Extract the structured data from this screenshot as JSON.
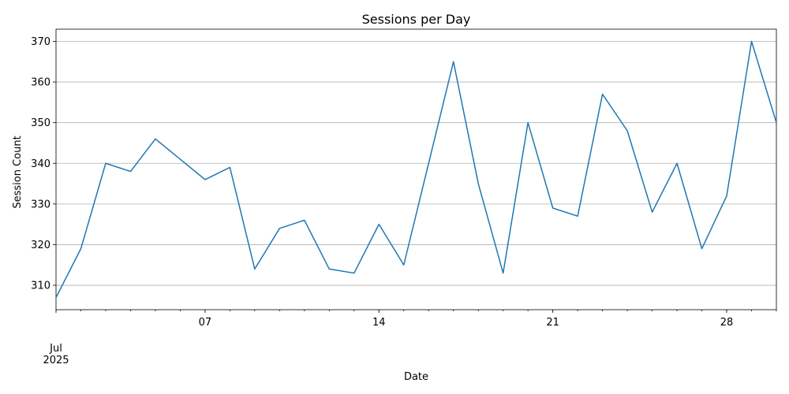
{
  "chart_data": {
    "type": "line",
    "title": "Sessions per Day",
    "xlabel": "Date",
    "ylabel": "Session Count",
    "x": [
      "2025-07-01",
      "2025-07-02",
      "2025-07-03",
      "2025-07-04",
      "2025-07-05",
      "2025-07-06",
      "2025-07-07",
      "2025-07-08",
      "2025-07-09",
      "2025-07-10",
      "2025-07-11",
      "2025-07-12",
      "2025-07-13",
      "2025-07-14",
      "2025-07-15",
      "2025-07-16",
      "2025-07-17",
      "2025-07-18",
      "2025-07-19",
      "2025-07-20",
      "2025-07-21",
      "2025-07-22",
      "2025-07-23",
      "2025-07-24",
      "2025-07-25",
      "2025-07-26",
      "2025-07-27",
      "2025-07-28",
      "2025-07-29",
      "2025-07-30"
    ],
    "series": [
      {
        "values": [
          307,
          319,
          340,
          338,
          346,
          341,
          336,
          339,
          314,
          324,
          326,
          314,
          313,
          325,
          315,
          340,
          365,
          335,
          313,
          350,
          329,
          327,
          357,
          348,
          328,
          340,
          319,
          332,
          370,
          350
        ]
      }
    ],
    "ylim": [
      304,
      373
    ],
    "xlim": [
      "2025-07-01",
      "2025-07-30"
    ],
    "yticks": [
      310,
      320,
      330,
      340,
      350,
      360,
      370
    ],
    "xticks": [
      {
        "date": "2025-07-01",
        "label": "Jul",
        "sublabel": "2025"
      },
      {
        "date": "2025-07-07",
        "label": "07"
      },
      {
        "date": "2025-07-14",
        "label": "14"
      },
      {
        "date": "2025-07-21",
        "label": "21"
      },
      {
        "date": "2025-07-28",
        "label": "28"
      }
    ],
    "grid": "horizontal",
    "line_color": "#1f77b4"
  }
}
